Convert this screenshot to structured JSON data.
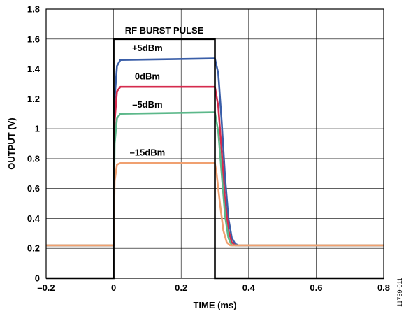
{
  "chart_data": {
    "type": "line",
    "title": "",
    "xlabel": "TIME (ms)",
    "ylabel": "OUTPUT (V)",
    "xlim": [
      -0.2,
      0.8
    ],
    "ylim": [
      0,
      1.8
    ],
    "x_ticks": [
      -0.2,
      0,
      0.2,
      0.4,
      0.6,
      0.8
    ],
    "x_tick_labels": [
      "–0.2",
      "0",
      "0.2",
      "0.4",
      "0.6",
      "0.8"
    ],
    "y_ticks": [
      0,
      0.2,
      0.4,
      0.6,
      0.8,
      1.0,
      1.2,
      1.4,
      1.6,
      1.8
    ],
    "y_tick_labels": [
      "0",
      "0.2",
      "0.4",
      "0.6",
      "0.8",
      "1",
      "1.2",
      "1.4",
      "1.6",
      "1.8"
    ],
    "grid": true,
    "annotation": {
      "label": "RF BURST PULSE",
      "x": [
        -0.2,
        0,
        0,
        0.3,
        0.3,
        0.8
      ],
      "y": [
        0,
        0,
        1.6,
        1.6,
        0,
        0
      ],
      "color": "#000000"
    },
    "series": [
      {
        "name": "+5dBm",
        "color": "#3a5ea8",
        "x": [
          -0.2,
          0,
          0.003,
          0.01,
          0.02,
          0.3,
          0.31,
          0.32,
          0.33,
          0.34,
          0.35,
          0.36,
          0.37,
          0.8
        ],
        "y": [
          0.22,
          0.22,
          1.2,
          1.42,
          1.46,
          1.47,
          1.37,
          1.05,
          0.68,
          0.4,
          0.27,
          0.23,
          0.22,
          0.22
        ],
        "label_at": [
          0.1,
          1.52
        ]
      },
      {
        "name": "0dBm",
        "color": "#d52b4e",
        "x": [
          -0.2,
          0,
          0.003,
          0.01,
          0.02,
          0.3,
          0.31,
          0.32,
          0.33,
          0.34,
          0.35,
          0.36,
          0.8
        ],
        "y": [
          0.22,
          0.22,
          1.05,
          1.25,
          1.28,
          1.28,
          1.15,
          0.85,
          0.52,
          0.32,
          0.24,
          0.22,
          0.22
        ],
        "label_at": [
          0.1,
          1.33
        ]
      },
      {
        "name": "–5dBm",
        "color": "#5cb88a",
        "x": [
          -0.2,
          0,
          0.003,
          0.01,
          0.02,
          0.3,
          0.31,
          0.32,
          0.33,
          0.34,
          0.35,
          0.8
        ],
        "y": [
          0.22,
          0.22,
          0.9,
          1.07,
          1.1,
          1.11,
          0.98,
          0.7,
          0.42,
          0.27,
          0.22,
          0.22
        ],
        "label_at": [
          0.1,
          1.14
        ]
      },
      {
        "name": "–15dBm",
        "color": "#f0a070",
        "x": [
          -0.2,
          0,
          0.003,
          0.01,
          0.02,
          0.3,
          0.305,
          0.315,
          0.325,
          0.335,
          0.345,
          0.8
        ],
        "y": [
          0.22,
          0.22,
          0.65,
          0.76,
          0.77,
          0.77,
          0.7,
          0.5,
          0.32,
          0.24,
          0.22,
          0.22
        ],
        "label_at": [
          0.1,
          0.82
        ]
      }
    ]
  },
  "figure_id": "11769-011"
}
